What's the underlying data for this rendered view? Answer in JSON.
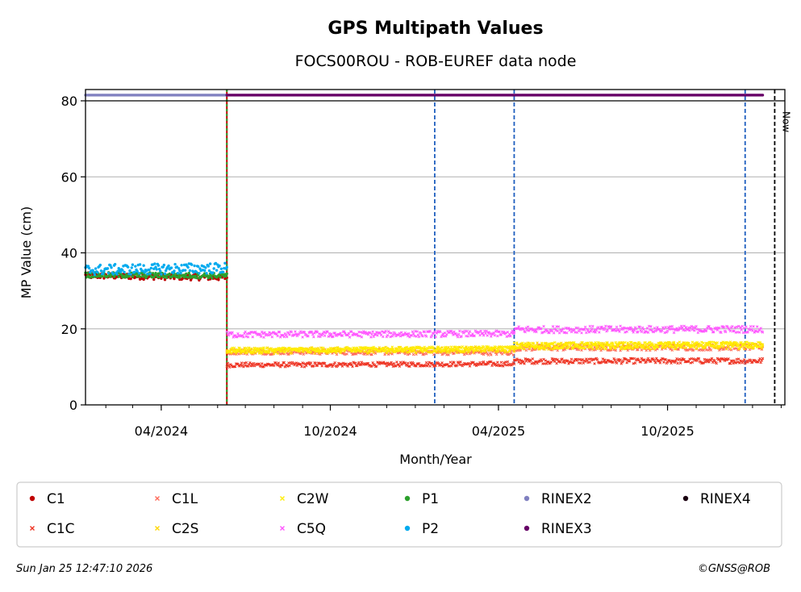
{
  "chart_data": {
    "type": "scatter",
    "title": "GPS Multipath Values",
    "subtitle": "FOCS00ROU - ROB-EUREF data node",
    "xlabel": "Month/Year",
    "ylabel": "MP Value (cm)",
    "xlim": [
      "2024-01-10",
      "2026-02-05"
    ],
    "ylim": [
      0,
      80
    ],
    "yticks": [
      0,
      20,
      40,
      60,
      80
    ],
    "xticks": [
      {
        "date": "2024-04-01",
        "label": "04/2024"
      },
      {
        "date": "2024-10-01",
        "label": "10/2024"
      },
      {
        "date": "2025-04-01",
        "label": "04/2025"
      },
      {
        "date": "2025-10-01",
        "label": "10/2025"
      }
    ],
    "grid": "horizontal",
    "legend_position": "bottom",
    "event_lines": [
      {
        "date": "2024-06-11",
        "color": "#2ca02c",
        "style": "dashed-double"
      },
      {
        "date": "2025-01-22",
        "color": "#1f5fbf",
        "style": "dashed"
      },
      {
        "date": "2025-04-18",
        "color": "#1f5fbf",
        "style": "dashed"
      },
      {
        "date": "2025-12-24",
        "color": "#1f5fbf",
        "style": "dashed"
      }
    ],
    "now_line": {
      "date": "2026-01-25",
      "label": "Now"
    },
    "series": [
      {
        "name": "C1",
        "color": "#c00000",
        "marker": "dot",
        "segments": [
          {
            "start": "2024-01-10",
            "end": "2024-06-11",
            "from": 34,
            "to": 33.5,
            "noise": 0.8
          }
        ]
      },
      {
        "name": "C1C",
        "color": "#ee3322",
        "marker": "x",
        "segments": [
          {
            "start": "2024-06-11",
            "end": "2025-04-18",
            "from": 10.5,
            "to": 10.8,
            "noise": 0.6
          },
          {
            "start": "2025-04-18",
            "end": "2026-01-12",
            "from": 11.5,
            "to": 11.6,
            "noise": 0.7
          }
        ]
      },
      {
        "name": "C1L",
        "color": "#ff6b5b",
        "marker": "x",
        "segments": [
          {
            "start": "2024-06-11",
            "end": "2025-04-18",
            "from": 14,
            "to": 13.8,
            "noise": 0.7
          },
          {
            "start": "2025-04-18",
            "end": "2026-01-12",
            "from": 15,
            "to": 15.2,
            "noise": 0.8
          }
        ]
      },
      {
        "name": "C2S",
        "color": "#ffd700",
        "marker": "x",
        "segments": [
          {
            "start": "2024-06-11",
            "end": "2025-04-18",
            "from": 14.2,
            "to": 14.6,
            "noise": 0.8
          },
          {
            "start": "2025-04-18",
            "end": "2026-01-12",
            "from": 15.5,
            "to": 15.6,
            "noise": 0.9
          }
        ]
      },
      {
        "name": "C2W",
        "color": "#ffee00",
        "marker": "x",
        "segments": [
          {
            "start": "2024-06-11",
            "end": "2025-04-18",
            "from": 14.4,
            "to": 14.8,
            "noise": 0.6
          },
          {
            "start": "2025-04-18",
            "end": "2026-01-12",
            "from": 15.6,
            "to": 15.8,
            "noise": 0.8
          }
        ]
      },
      {
        "name": "C5Q",
        "color": "#ff55ff",
        "marker": "x",
        "segments": [
          {
            "start": "2024-06-11",
            "end": "2025-04-18",
            "from": 18.5,
            "to": 18.7,
            "noise": 0.8
          },
          {
            "start": "2025-04-18",
            "end": "2026-01-12",
            "from": 19.8,
            "to": 19.9,
            "noise": 0.9
          }
        ]
      },
      {
        "name": "P1",
        "color": "#2ca02c",
        "marker": "dot",
        "segments": [
          {
            "start": "2024-01-10",
            "end": "2024-06-11",
            "from": 34.2,
            "to": 34,
            "noise": 0.7
          }
        ]
      },
      {
        "name": "P2",
        "color": "#00aaee",
        "marker": "dot",
        "segments": [
          {
            "start": "2024-01-10",
            "end": "2024-06-11",
            "from": 35.5,
            "to": 36,
            "noise": 1.4
          }
        ]
      },
      {
        "name": "RINEX2",
        "color": "#8080c0",
        "marker": "dot",
        "segments": [
          {
            "start": "2024-01-10",
            "end": "2024-06-11",
            "from": 81.5,
            "to": 81.5,
            "noise": 0
          }
        ]
      },
      {
        "name": "RINEX3",
        "color": "#660066",
        "marker": "dot",
        "segments": [
          {
            "start": "2024-06-11",
            "end": "2026-01-12",
            "from": 81.5,
            "to": 81.5,
            "noise": 0
          }
        ]
      },
      {
        "name": "RINEX4",
        "color": "#1a0010",
        "marker": "dot",
        "segments": []
      }
    ],
    "legend_order": [
      "C1",
      "C1C",
      "C1L",
      "C2S",
      "C2W",
      "C5Q",
      "P1",
      "P2",
      "RINEX2",
      "RINEX3",
      "RINEX4"
    ]
  },
  "footer": {
    "timestamp": "Sun Jan 25 12:47:10 2026",
    "credit": "©GNSS@ROB"
  }
}
